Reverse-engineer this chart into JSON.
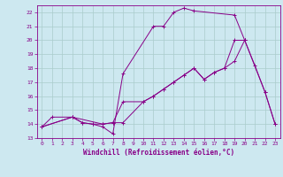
{
  "xlabel": "Windchill (Refroidissement éolien,°C)",
  "xlim": [
    -0.5,
    23.5
  ],
  "ylim": [
    13,
    22.5
  ],
  "xticks": [
    0,
    1,
    2,
    3,
    4,
    5,
    6,
    7,
    8,
    9,
    10,
    11,
    12,
    13,
    14,
    15,
    16,
    17,
    18,
    19,
    20,
    21,
    22,
    23
  ],
  "yticks": [
    13,
    14,
    15,
    16,
    17,
    18,
    19,
    20,
    21,
    22
  ],
  "bg_color": "#cde8f0",
  "line_color": "#880088",
  "grid_color": "#aacccc",
  "line1_x": [
    0,
    1,
    3,
    4,
    5,
    6,
    7,
    8,
    11,
    12,
    13,
    14,
    15,
    19,
    20,
    22,
    23
  ],
  "line1_y": [
    13.8,
    14.5,
    14.5,
    14.1,
    14.0,
    13.8,
    13.3,
    17.6,
    21.0,
    21.0,
    22.0,
    22.3,
    22.1,
    21.8,
    20.0,
    16.3,
    14.0
  ],
  "line2_x": [
    0,
    3,
    4,
    5,
    6,
    7,
    8,
    10,
    11,
    12,
    13,
    14,
    15,
    16,
    17,
    18,
    19,
    20,
    21,
    22,
    23
  ],
  "line2_y": [
    13.8,
    14.5,
    14.1,
    14.0,
    14.0,
    14.1,
    14.1,
    15.6,
    16.0,
    16.5,
    17.0,
    17.5,
    18.0,
    17.2,
    17.7,
    18.0,
    18.5,
    20.0,
    18.2,
    16.3,
    14.0
  ],
  "line3_x": [
    0,
    3,
    6,
    7,
    8,
    10,
    11,
    12,
    13,
    14,
    15,
    16,
    17,
    18,
    19,
    20
  ],
  "line3_y": [
    13.8,
    14.5,
    14.0,
    14.1,
    15.6,
    15.6,
    16.0,
    16.5,
    17.0,
    17.5,
    18.0,
    17.2,
    17.7,
    18.0,
    20.0,
    20.0
  ]
}
